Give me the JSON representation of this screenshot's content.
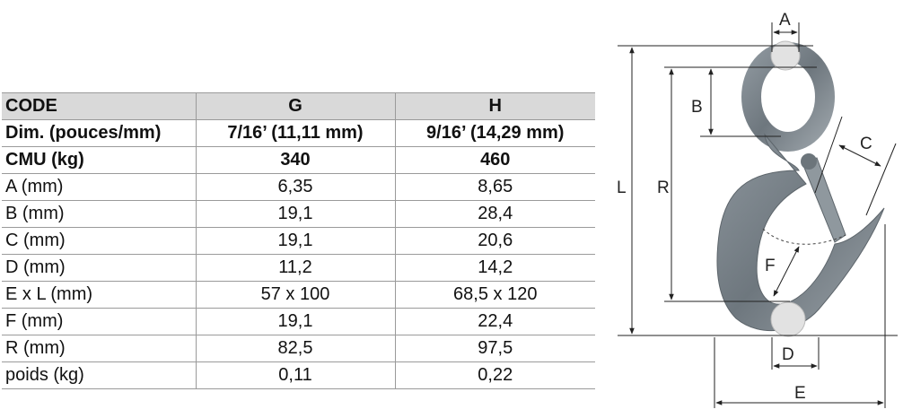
{
  "table": {
    "header": [
      "CODE",
      "G",
      "H"
    ],
    "rows": [
      {
        "label": "Dim. (pouces/mm)",
        "g": "7/16’ (11,11 mm)",
        "h": "9/16’ (14,29 mm)",
        "bold": true
      },
      {
        "label": "CMU (kg)",
        "g": "340",
        "h": "460",
        "bold": true
      },
      {
        "label": "A (mm)",
        "g": "6,35",
        "h": "8,65"
      },
      {
        "label": "B (mm)",
        "g": "19,1",
        "h": "28,4"
      },
      {
        "label": "C (mm)",
        "g": "19,1",
        "h": "20,6"
      },
      {
        "label": "D (mm)",
        "g": "11,2",
        "h": "14,2"
      },
      {
        "label": "E x L (mm)",
        "g": "57 x 100",
        "h": "68,5 x 120"
      },
      {
        "label": "F (mm)",
        "g": "19,1",
        "h": "22,4"
      },
      {
        "label": "R (mm)",
        "g": "82,5",
        "h": "97,5"
      },
      {
        "label": "poids (kg)",
        "g": "0,11",
        "h": "0,22"
      }
    ]
  },
  "diagram": {
    "labels": {
      "A": "A",
      "B": "B",
      "C": "C",
      "D": "D",
      "E": "E",
      "F": "F",
      "L": "L",
      "R": "R"
    }
  }
}
